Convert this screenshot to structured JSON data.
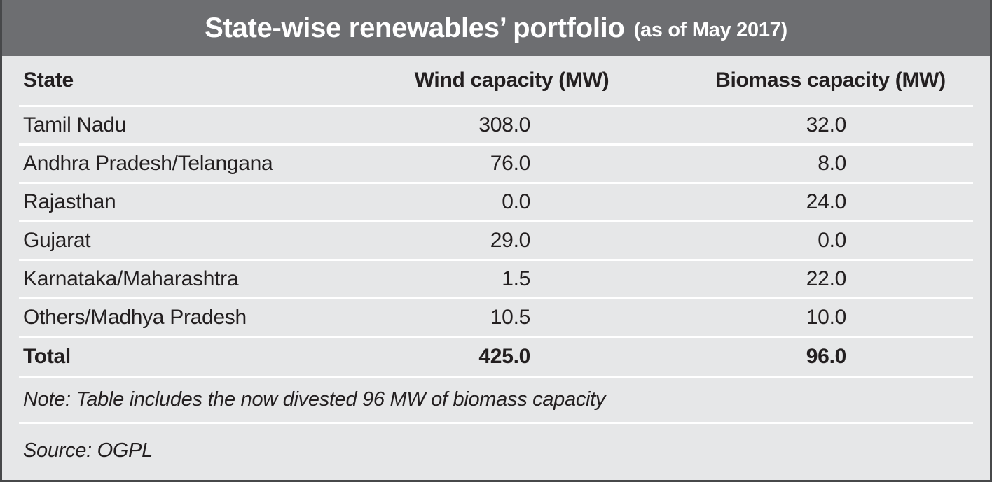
{
  "title": {
    "main": "State-wise renewables’ portfolio",
    "suffix": "(as of May 2017)"
  },
  "table": {
    "columns": {
      "state": "State",
      "wind": "Wind capacity (MW)",
      "biomass": "Biomass capacity (MW)"
    },
    "rows": [
      {
        "state": "Tamil Nadu",
        "wind": "308.0",
        "biomass": "32.0"
      },
      {
        "state": "Andhra Pradesh/Telangana",
        "wind": "76.0",
        "biomass": "8.0"
      },
      {
        "state": "Rajasthan",
        "wind": "0.0",
        "biomass": "24.0"
      },
      {
        "state": "Gujarat",
        "wind": "29.0",
        "biomass": "0.0"
      },
      {
        "state": "Karnataka/Maharashtra",
        "wind": "1.5",
        "biomass": "22.0"
      },
      {
        "state": "Others/Madhya Pradesh",
        "wind": "10.5",
        "biomass": "10.0"
      }
    ],
    "total": {
      "state": "Total",
      "wind": "425.0",
      "biomass": "96.0"
    }
  },
  "note": "Note: Table includes the now divested 96 MW of biomass capacity",
  "source": "Source: OGPL",
  "colors": {
    "title_band": "#6d6e71",
    "body_background": "#e6e7e8",
    "text": "#231f20",
    "separator": "#ffffff",
    "outer_border": "#47484a",
    "title_text": "#ffffff"
  },
  "chart_data": {
    "type": "table",
    "title": "State-wise renewables’ portfolio (as of May 2017)",
    "columns": [
      "State",
      "Wind capacity (MW)",
      "Biomass capacity (MW)"
    ],
    "categories": [
      "Tamil Nadu",
      "Andhra Pradesh/Telangana",
      "Rajasthan",
      "Gujarat",
      "Karnataka/Maharashtra",
      "Others/Madhya Pradesh"
    ],
    "series": [
      {
        "name": "Wind capacity (MW)",
        "values": [
          308.0,
          76.0,
          0.0,
          29.0,
          1.5,
          10.5
        ],
        "total": 425.0
      },
      {
        "name": "Biomass capacity (MW)",
        "values": [
          32.0,
          8.0,
          24.0,
          0.0,
          22.0,
          10.0
        ],
        "total": 96.0
      }
    ],
    "note": "Note: Table includes the now divested 96 MW of biomass capacity",
    "source": "Source: OGPL"
  }
}
